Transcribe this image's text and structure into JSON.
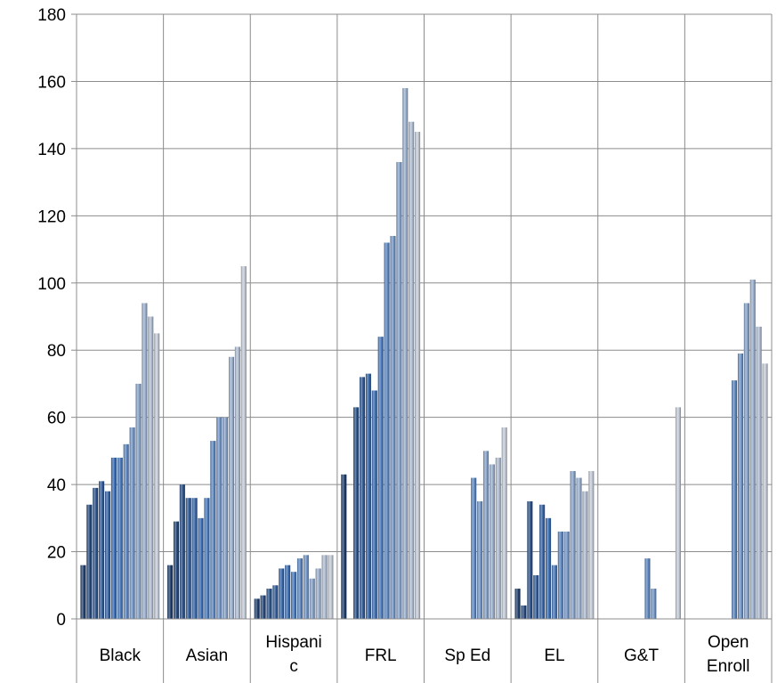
{
  "chart_data": {
    "type": "bar",
    "title": "",
    "xlabel": "",
    "ylabel": "",
    "ylim": [
      0,
      180
    ],
    "yticks": [
      0,
      20,
      40,
      60,
      80,
      100,
      120,
      140,
      160,
      180
    ],
    "grid": true,
    "legend": "none",
    "categories": [
      {
        "label_lines": [
          "Black"
        ],
        "values": [
          16,
          34,
          39,
          41,
          38,
          48,
          48,
          52,
          57,
          70,
          94,
          90,
          85
        ]
      },
      {
        "label_lines": [
          "Asian"
        ],
        "values": [
          16,
          29,
          40,
          36,
          36,
          30,
          36,
          53,
          60,
          60,
          78,
          81,
          105
        ]
      },
      {
        "label_lines": [
          "Hispani",
          "c"
        ],
        "values": [
          6,
          7,
          9,
          10,
          15,
          16,
          14,
          18,
          19,
          12,
          15,
          19,
          19
        ]
      },
      {
        "label_lines": [
          "FRL"
        ],
        "values": [
          43,
          0,
          63,
          72,
          73,
          68,
          84,
          112,
          114,
          136,
          158,
          148,
          145
        ]
      },
      {
        "label_lines": [
          "Sp Ed"
        ],
        "values": [
          0,
          0,
          0,
          0,
          0,
          0,
          0,
          42,
          35,
          50,
          46,
          48,
          57
        ]
      },
      {
        "label_lines": [
          "EL"
        ],
        "values": [
          9,
          4,
          35,
          13,
          34,
          30,
          16,
          26,
          26,
          44,
          42,
          38,
          44
        ]
      },
      {
        "label_lines": [
          "G&T"
        ],
        "values": [
          0,
          0,
          0,
          0,
          0,
          0,
          0,
          18,
          9,
          0,
          0,
          0,
          63
        ]
      },
      {
        "label_lines": [
          "Open",
          "Enroll"
        ],
        "values": [
          0,
          0,
          0,
          0,
          0,
          0,
          0,
          71,
          79,
          94,
          101,
          87,
          76
        ]
      }
    ],
    "colors": {
      "dark": "#1f3d6b",
      "mid": "#3a6fb8",
      "light": "#c3cad6"
    }
  }
}
